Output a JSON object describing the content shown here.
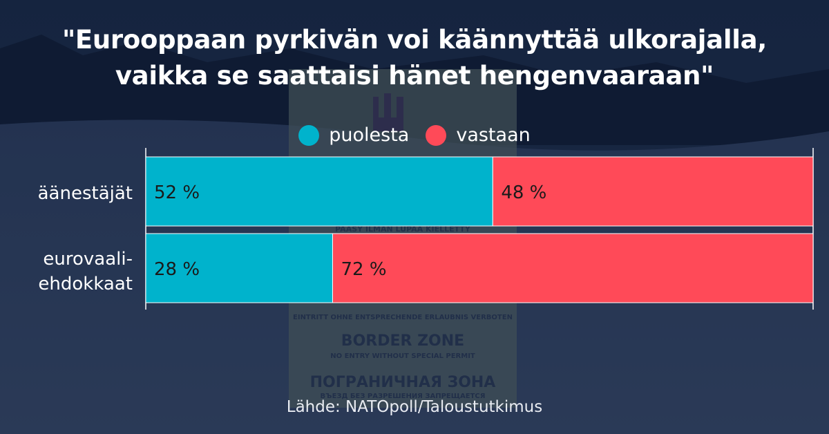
{
  "title_lines": [
    "\"Eurooppaan pyrkivän voi käännyttää ulkorajalla,",
    "vaikka se saattaisi hänet hengenvaaraan\""
  ],
  "legend": [
    {
      "label": "puolesta",
      "color": "#00b3cc"
    },
    {
      "label": "vastaan",
      "color": "#ff4a58"
    }
  ],
  "source": "Lähde: NATOpoll/Taloustutkimus",
  "background_sign_text": [
    "PÄÄSY ILMAN LUPAA KIELLETTY",
    "EINTRITT OHNE ENTSPRECHENDE ERLAUBNIS VERBOTEN",
    "BORDER ZONE",
    "NO ENTRY WITHOUT SPECIAL PERMIT",
    "ПОГРАНИЧНАЯ ЗОНА",
    "ВЪЕЗД БЕЗ РАЗРЕШЕНИЯ ЗАПРЕЩАЕТСЯ"
  ],
  "chart_data": {
    "type": "bar",
    "orientation": "horizontal",
    "stacked": true,
    "categories": [
      "äänestäjät",
      "eurovaali-ehdokkaat"
    ],
    "category_lines": [
      [
        "äänestäjät"
      ],
      [
        "eurovaali-",
        "ehdokkaat"
      ]
    ],
    "series": [
      {
        "name": "puolesta",
        "values": [
          52,
          28
        ]
      },
      {
        "name": "vastaan",
        "values": [
          48,
          72
        ]
      }
    ],
    "data_labels": [
      [
        "52 %",
        "48 %"
      ],
      [
        "28 %",
        "72 %"
      ]
    ],
    "xlim": [
      0,
      100
    ],
    "grid": false,
    "legend_position": "top-center"
  }
}
